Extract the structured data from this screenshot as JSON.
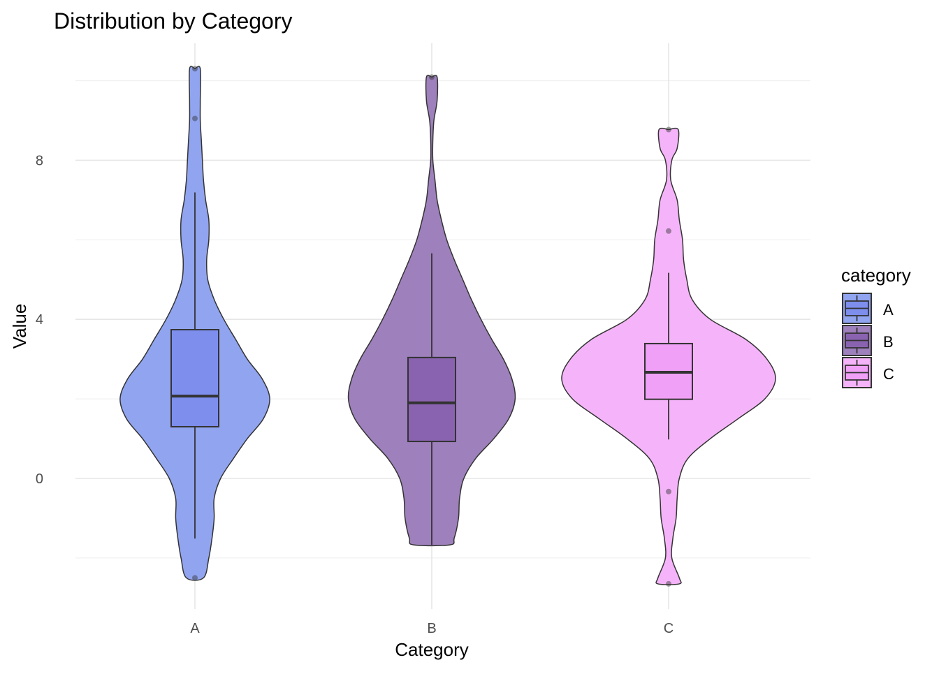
{
  "chart_data": {
    "type": "violin",
    "title": "Distribution by Category",
    "xlabel": "Category",
    "ylabel": "Value",
    "ylim": [
      -3.0,
      10.9
    ],
    "yticks": [
      0,
      4,
      8
    ],
    "ytick_labels": [
      "0",
      "4",
      "8"
    ],
    "grid": true,
    "legend": {
      "title": "category",
      "position": "right",
      "entries": [
        "A",
        "B",
        "C"
      ]
    },
    "categories": [
      "A",
      "B",
      "C"
    ],
    "colors": {
      "A": "#91a4f0",
      "B": "#9e80bc",
      "C": "#f5b4f9"
    },
    "box_colors": {
      "A": "#7d8eed",
      "B": "#8a63b0",
      "C": "#f0a0f6"
    },
    "series": [
      {
        "name": "A",
        "box": {
          "q1": 1.3,
          "median": 2.07,
          "q3": 3.74,
          "whisker_low": -1.51,
          "whisker_high": 7.19
        },
        "outliers": [
          10.3,
          9.05,
          -2.5
        ],
        "density_profile": {
          "values": [
            10.3,
            9.5,
            9,
            8.5,
            8,
            7.5,
            7,
            6.5,
            6,
            5.5,
            5,
            4.5,
            4,
            3.5,
            3,
            2.5,
            2,
            1.5,
            1,
            0.5,
            0,
            -0.5,
            -1,
            -1.5,
            -2,
            -2.5
          ],
          "relative_density": [
            5,
            5,
            5,
            6,
            7,
            8,
            10,
            13,
            13,
            11,
            12,
            18,
            27,
            38,
            49,
            63,
            70,
            64,
            49,
            36,
            24,
            18,
            18,
            16,
            13,
            8
          ]
        }
      },
      {
        "name": "B",
        "box": {
          "q1": 0.93,
          "median": 1.9,
          "q3": 3.04,
          "whisker_low": -1.67,
          "whisker_high": 5.66
        },
        "outliers": [
          10.09
        ],
        "density_profile": {
          "values": [
            10.09,
            9.5,
            9,
            8.5,
            8,
            7.5,
            7,
            6.5,
            6,
            5.5,
            5,
            4.5,
            4,
            3.5,
            3,
            2.5,
            2,
            1.5,
            1,
            0.5,
            0,
            -0.5,
            -1,
            -1.5,
            -1.67
          ],
          "relative_density": [
            5,
            5,
            2,
            1,
            1,
            3,
            5,
            9,
            14,
            21,
            29,
            37,
            46,
            56,
            67,
            75,
            78,
            72,
            58,
            41,
            30,
            26,
            25,
            21,
            17
          ]
        }
      },
      {
        "name": "C",
        "box": {
          "q1": 1.99,
          "median": 2.67,
          "q3": 3.39,
          "whisker_low": 0.98,
          "whisker_high": 5.17
        },
        "outliers": [
          8.77,
          6.22,
          -0.33,
          -2.65
        ],
        "density_profile": {
          "values": [
            8.77,
            8.3,
            8,
            7.5,
            7,
            6.5,
            6,
            5.5,
            5,
            4.5,
            4,
            3.5,
            3,
            2.5,
            2,
            1.5,
            1,
            0.5,
            0,
            -0.5,
            -1,
            -1.5,
            -2,
            -2.5,
            -2.65
          ],
          "relative_density": [
            9,
            8,
            3,
            2,
            8,
            10,
            13,
            14,
            17,
            22,
            39,
            72,
            92,
            100,
            90,
            65,
            39,
            18,
            10,
            8,
            7,
            4,
            3,
            10,
            10
          ]
        }
      }
    ]
  }
}
